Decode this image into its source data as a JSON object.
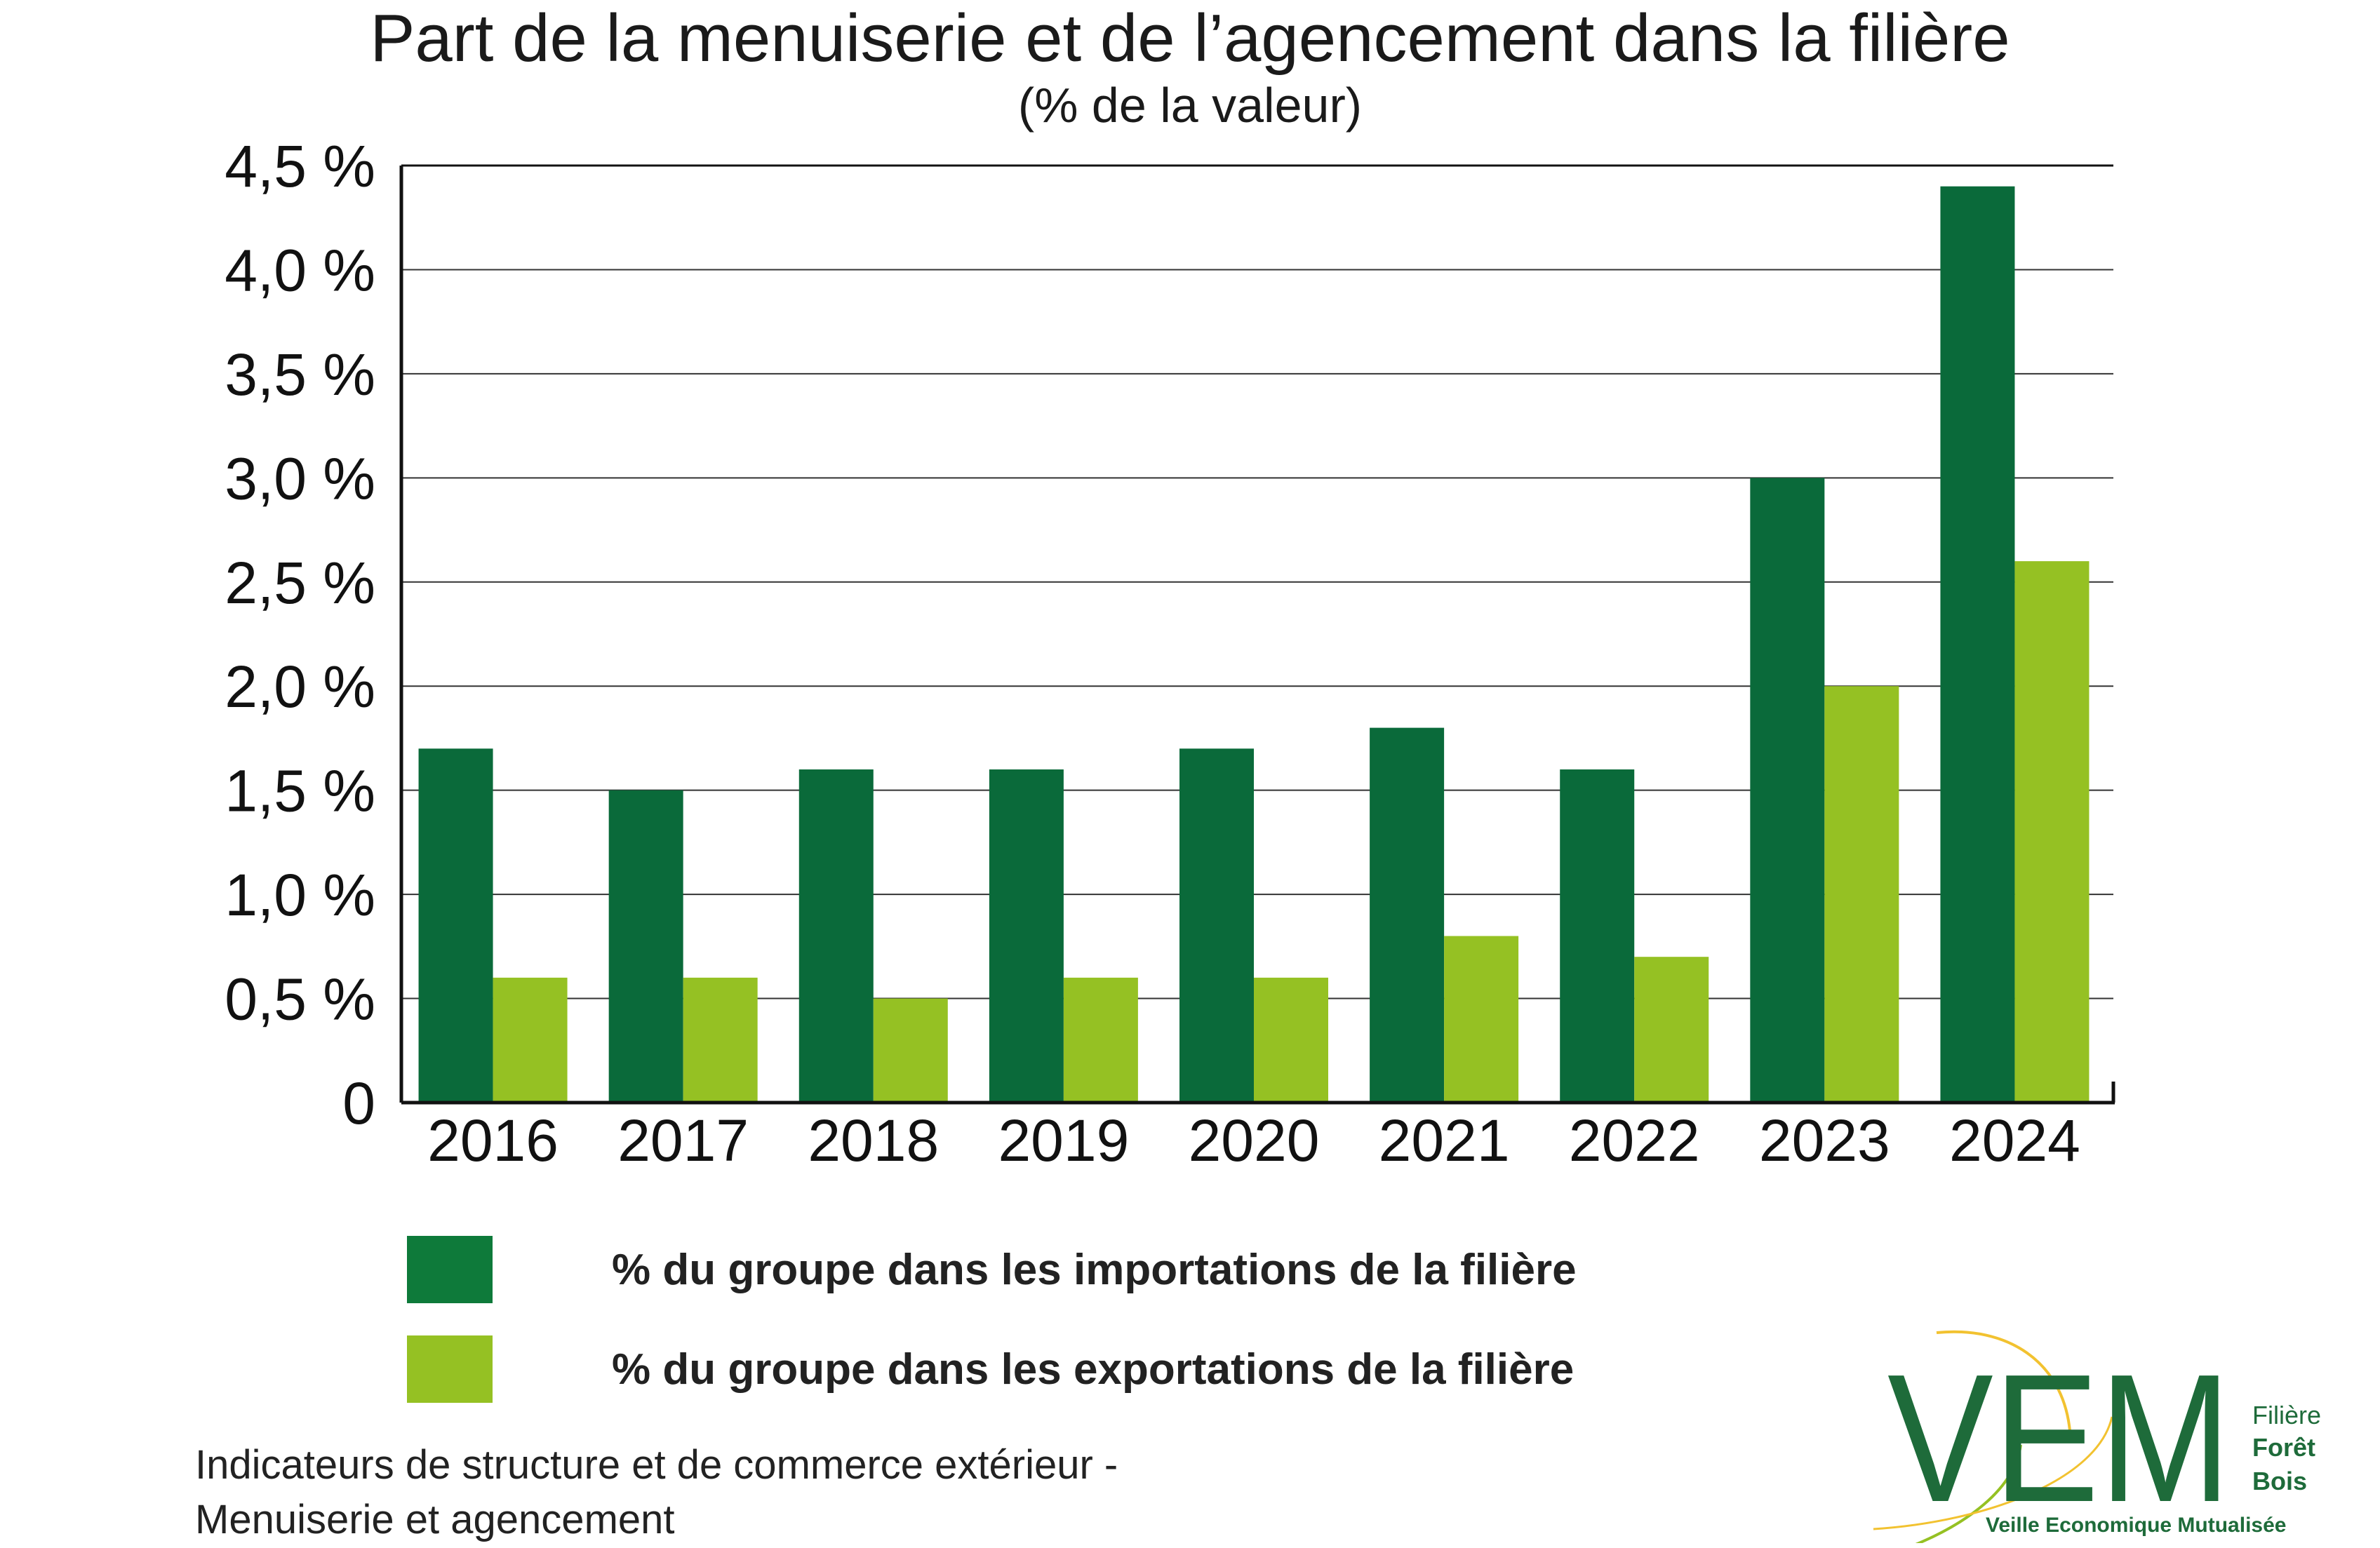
{
  "chart_data": {
    "type": "bar",
    "title": "Part de la menuiserie et de l’agencement dans la filière",
    "subtitle": "(% de la valeur)",
    "categories": [
      "2016",
      "2017",
      "2018",
      "2019",
      "2020",
      "2021",
      "2022",
      "2023",
      "2024"
    ],
    "series": [
      {
        "name": "% du groupe dans les importations de la filière",
        "color": "#0a6a3a",
        "values": [
          1.7,
          1.5,
          1.6,
          1.6,
          1.7,
          1.8,
          1.6,
          3.0,
          4.4
        ]
      },
      {
        "name": "% du groupe dans les exportations de la filière",
        "color": "#95c123",
        "values": [
          0.6,
          0.6,
          0.5,
          0.6,
          0.6,
          0.8,
          0.7,
          2.0,
          2.6
        ]
      }
    ],
    "ylim": [
      0,
      4.5
    ],
    "yticks": [
      {
        "value": 0,
        "label": "0"
      },
      {
        "value": 0.5,
        "label": "0,5 %"
      },
      {
        "value": 1.0,
        "label": "1,0 %"
      },
      {
        "value": 1.5,
        "label": "1,5 %"
      },
      {
        "value": 2.0,
        "label": "2,0 %"
      },
      {
        "value": 2.5,
        "label": "2,5 %"
      },
      {
        "value": 3.0,
        "label": "3,0 %"
      },
      {
        "value": 3.5,
        "label": "3,5 %"
      },
      {
        "value": 4.0,
        "label": "4,0 %"
      },
      {
        "value": 4.5,
        "label": "4,5 %"
      }
    ],
    "grid": true,
    "legend_position": "bottom"
  },
  "legend": {
    "imports_color": "#0e7a3a",
    "exports_color": "#95c123"
  },
  "source": {
    "line1": "Indicateurs de structure et de commerce extérieur -",
    "line2": "Menuiserie et agencement"
  },
  "logo": {
    "mark": "VEM",
    "line1": "Filière",
    "line2": "Forêt",
    "line3": "Bois",
    "tagline": "Veille Economique Mutualisée",
    "colors": {
      "green": "#1e6b3a",
      "yellow": "#f2c230"
    }
  }
}
